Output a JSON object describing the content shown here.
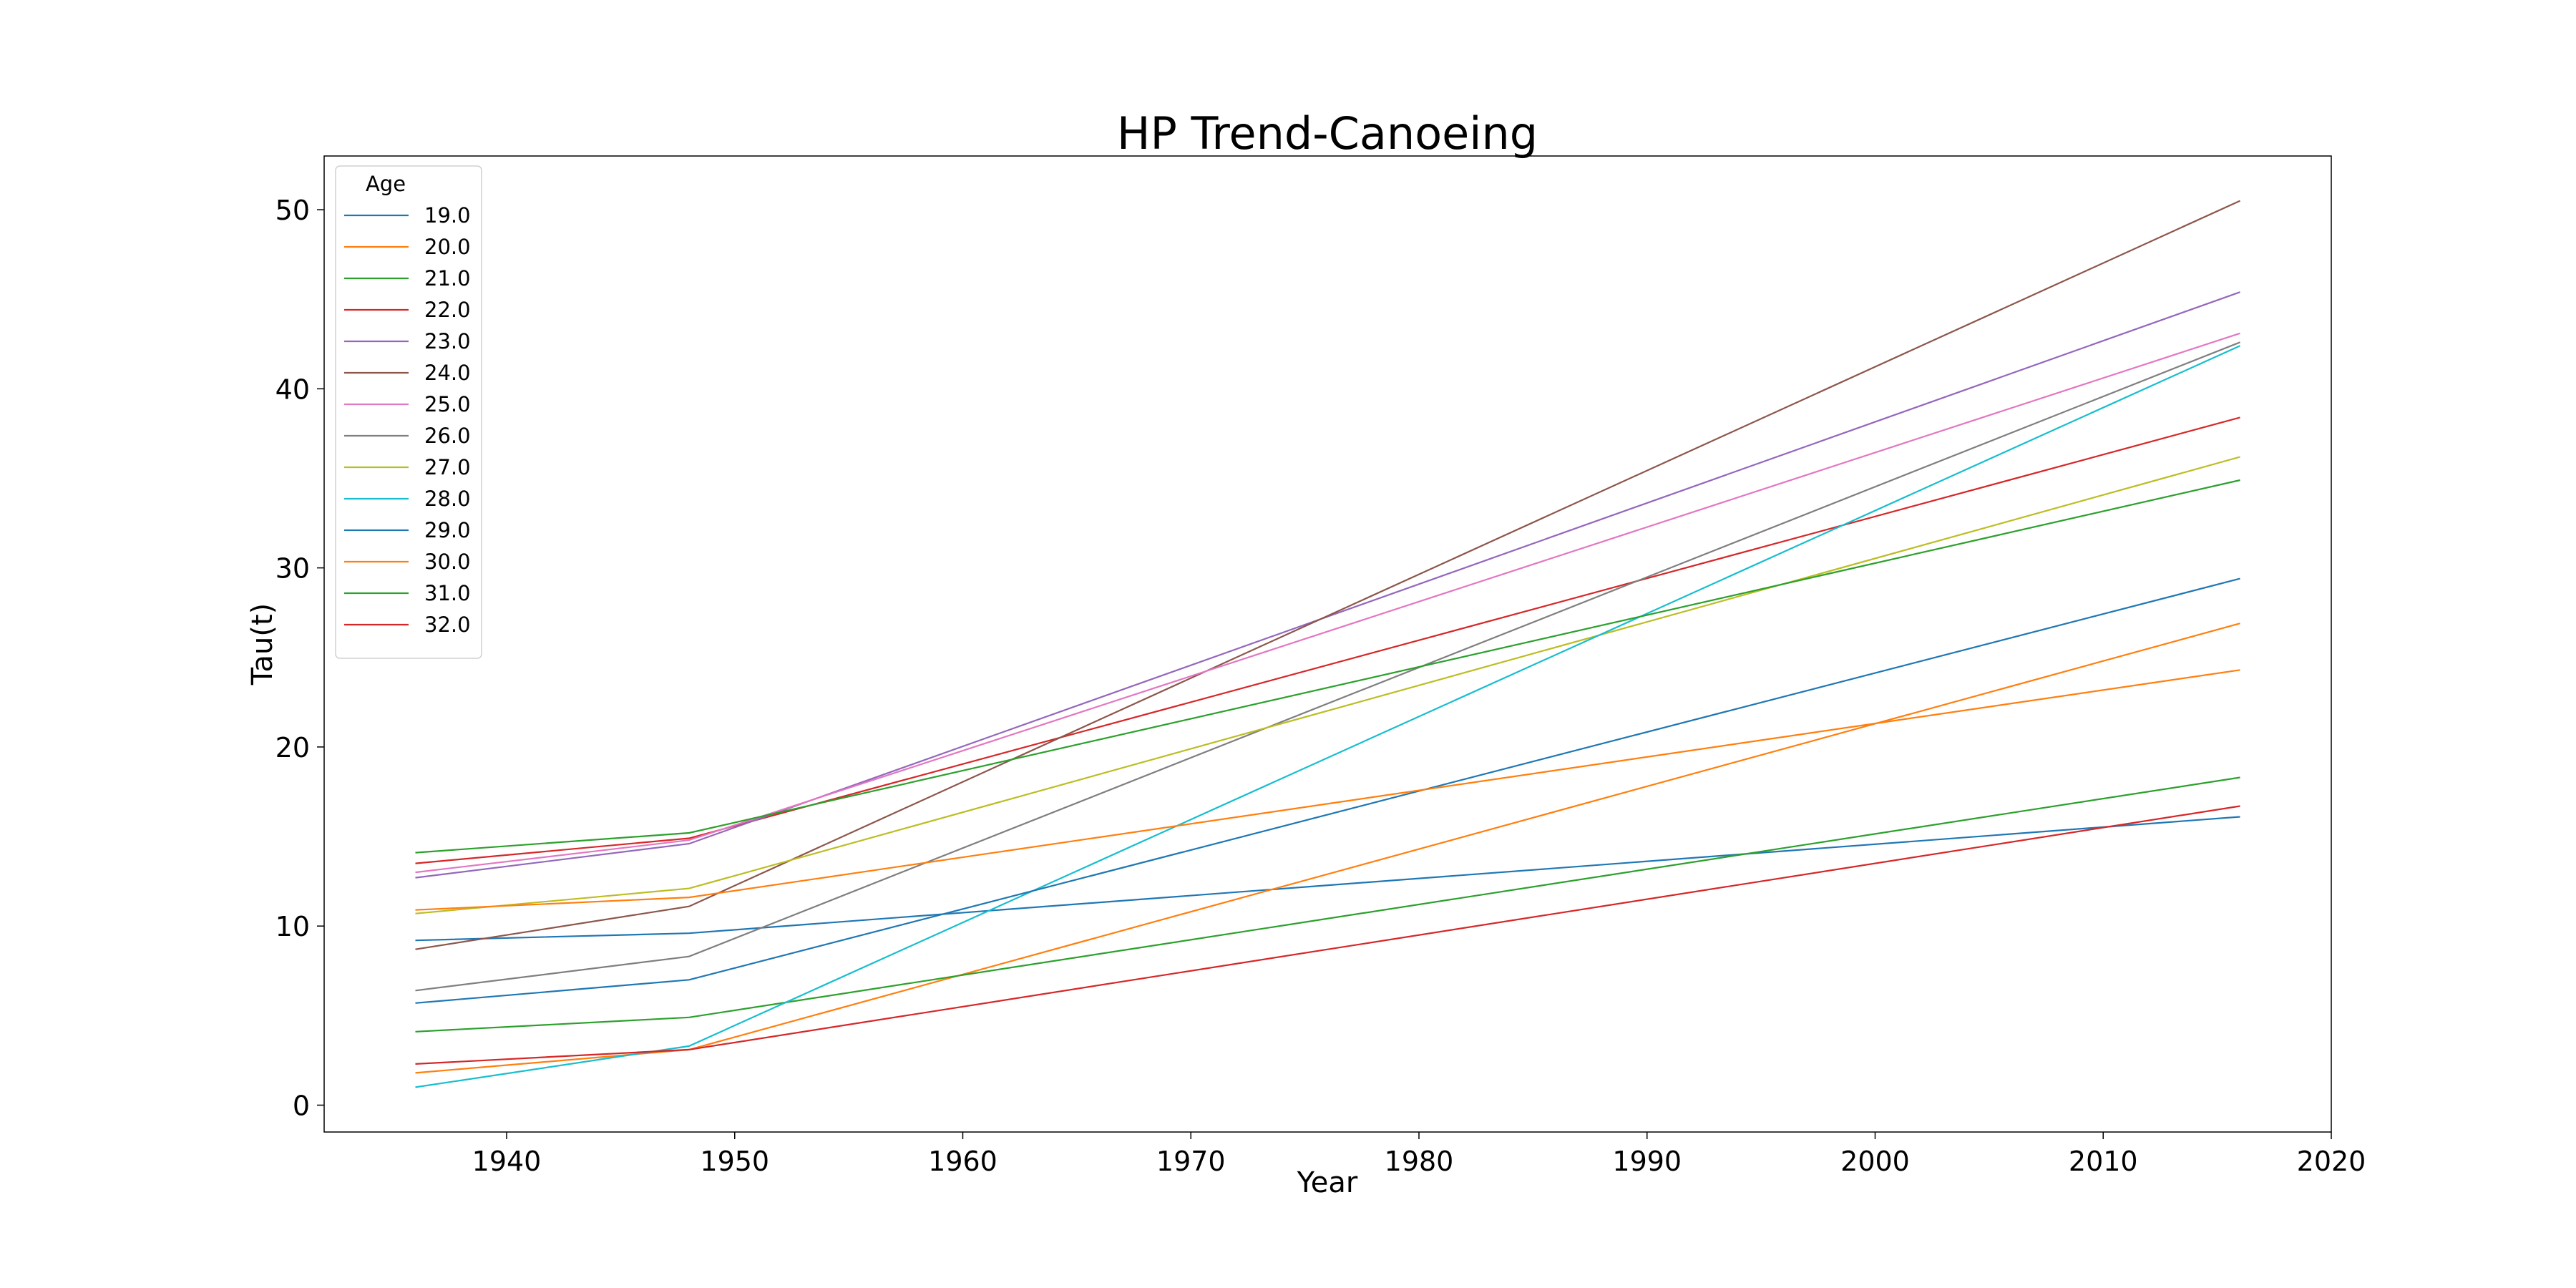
{
  "chart_data": {
    "type": "line",
    "title": "HP Trend-Canoeing",
    "xlabel": "Year",
    "ylabel": "Tau(t)",
    "xlim": [
      1932,
      2020
    ],
    "ylim": [
      -1.5,
      53
    ],
    "xticks": [
      1940,
      1950,
      1960,
      1970,
      1980,
      1990,
      2000,
      2010,
      2020
    ],
    "yticks": [
      0,
      10,
      20,
      30,
      40,
      50
    ],
    "grid": false,
    "legend": {
      "title": "Age",
      "placement": "top-left"
    },
    "x": [
      1936,
      1948,
      2016
    ],
    "series": [
      {
        "name": "19.0",
        "color": "#1f77b4",
        "values": [
          9.2,
          9.6,
          16.1
        ]
      },
      {
        "name": "20.0",
        "color": "#ff7f0e",
        "values": [
          1.8,
          3.1,
          26.9
        ]
      },
      {
        "name": "21.0",
        "color": "#2ca02c",
        "values": [
          4.1,
          4.9,
          18.3
        ]
      },
      {
        "name": "22.0",
        "color": "#d62728",
        "values": [
          13.5,
          14.9,
          38.4
        ]
      },
      {
        "name": "23.0",
        "color": "#9467bd",
        "values": [
          12.7,
          14.6,
          45.4
        ]
      },
      {
        "name": "24.0",
        "color": "#8c564b",
        "values": [
          8.7,
          11.1,
          50.5
        ]
      },
      {
        "name": "25.0",
        "color": "#e377c2",
        "values": [
          13.0,
          14.8,
          43.1
        ]
      },
      {
        "name": "26.0",
        "color": "#7f7f7f",
        "values": [
          6.4,
          8.3,
          42.6
        ]
      },
      {
        "name": "27.0",
        "color": "#bcbd22",
        "values": [
          10.7,
          12.1,
          36.2
        ]
      },
      {
        "name": "28.0",
        "color": "#17becf",
        "values": [
          1.0,
          3.3,
          42.4
        ]
      },
      {
        "name": "29.0",
        "color": "#1f77b4",
        "values": [
          5.7,
          7.0,
          29.4
        ]
      },
      {
        "name": "30.0",
        "color": "#ff7f0e",
        "values": [
          10.9,
          11.6,
          24.3
        ]
      },
      {
        "name": "31.0",
        "color": "#2ca02c",
        "values": [
          14.1,
          15.2,
          34.9
        ]
      },
      {
        "name": "32.0",
        "color": "#d62728",
        "values": [
          2.3,
          3.1,
          16.7
        ]
      }
    ]
  }
}
